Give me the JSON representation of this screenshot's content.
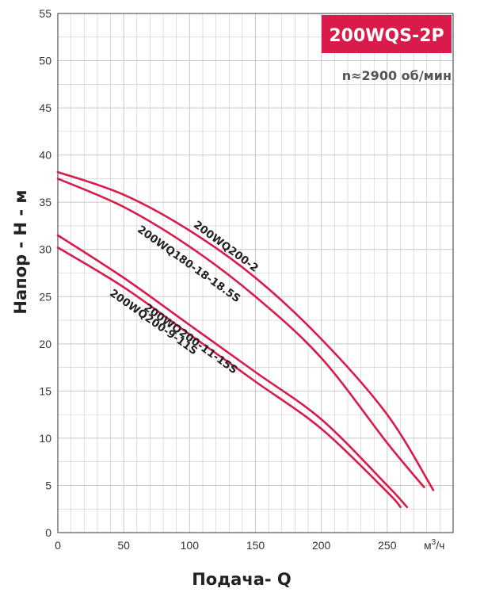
{
  "chart_data": {
    "type": "line",
    "title": "200WQS-2P",
    "subtitle": "n≈2900 об/мин",
    "xlabel": "Подача- Q",
    "xunit_base": "м",
    "xunit_sup": "3",
    "xunit_tail": "/ч",
    "ylabel": "Напор - Н - м",
    "xlim": [
      0,
      300
    ],
    "ylim": [
      0,
      55
    ],
    "x_ticks": [
      0,
      50,
      100,
      150,
      200,
      250
    ],
    "y_ticks": [
      0,
      5,
      10,
      15,
      20,
      25,
      30,
      35,
      40,
      45,
      50,
      55
    ],
    "grid": true,
    "series": [
      {
        "name": "200WQ200-2",
        "x": [
          0,
          50,
          100,
          150,
          200,
          250,
          285
        ],
        "y": [
          38.2,
          35.8,
          32.0,
          27.0,
          20.5,
          12.5,
          4.5
        ]
      },
      {
        "name": "200WQ180-18-18.5S",
        "x": [
          0,
          50,
          100,
          150,
          200,
          250,
          278
        ],
        "y": [
          37.5,
          34.5,
          30.3,
          25.0,
          18.5,
          9.5,
          4.8
        ]
      },
      {
        "name": "200WQ200-11-15S",
        "x": [
          0,
          50,
          100,
          150,
          200,
          250,
          265
        ],
        "y": [
          31.5,
          27.0,
          22.0,
          17.0,
          12.0,
          5.0,
          2.7
        ]
      },
      {
        "name": "200WQ200-9-11S",
        "x": [
          0,
          50,
          100,
          150,
          200,
          250,
          260
        ],
        "y": [
          30.2,
          26.0,
          21.0,
          16.0,
          11.0,
          4.3,
          2.7
        ]
      }
    ]
  },
  "colors": {
    "curve": "#d81b4a",
    "badge": "#d81b4a",
    "grid": "#c8c8c8",
    "frame": "#555555"
  }
}
